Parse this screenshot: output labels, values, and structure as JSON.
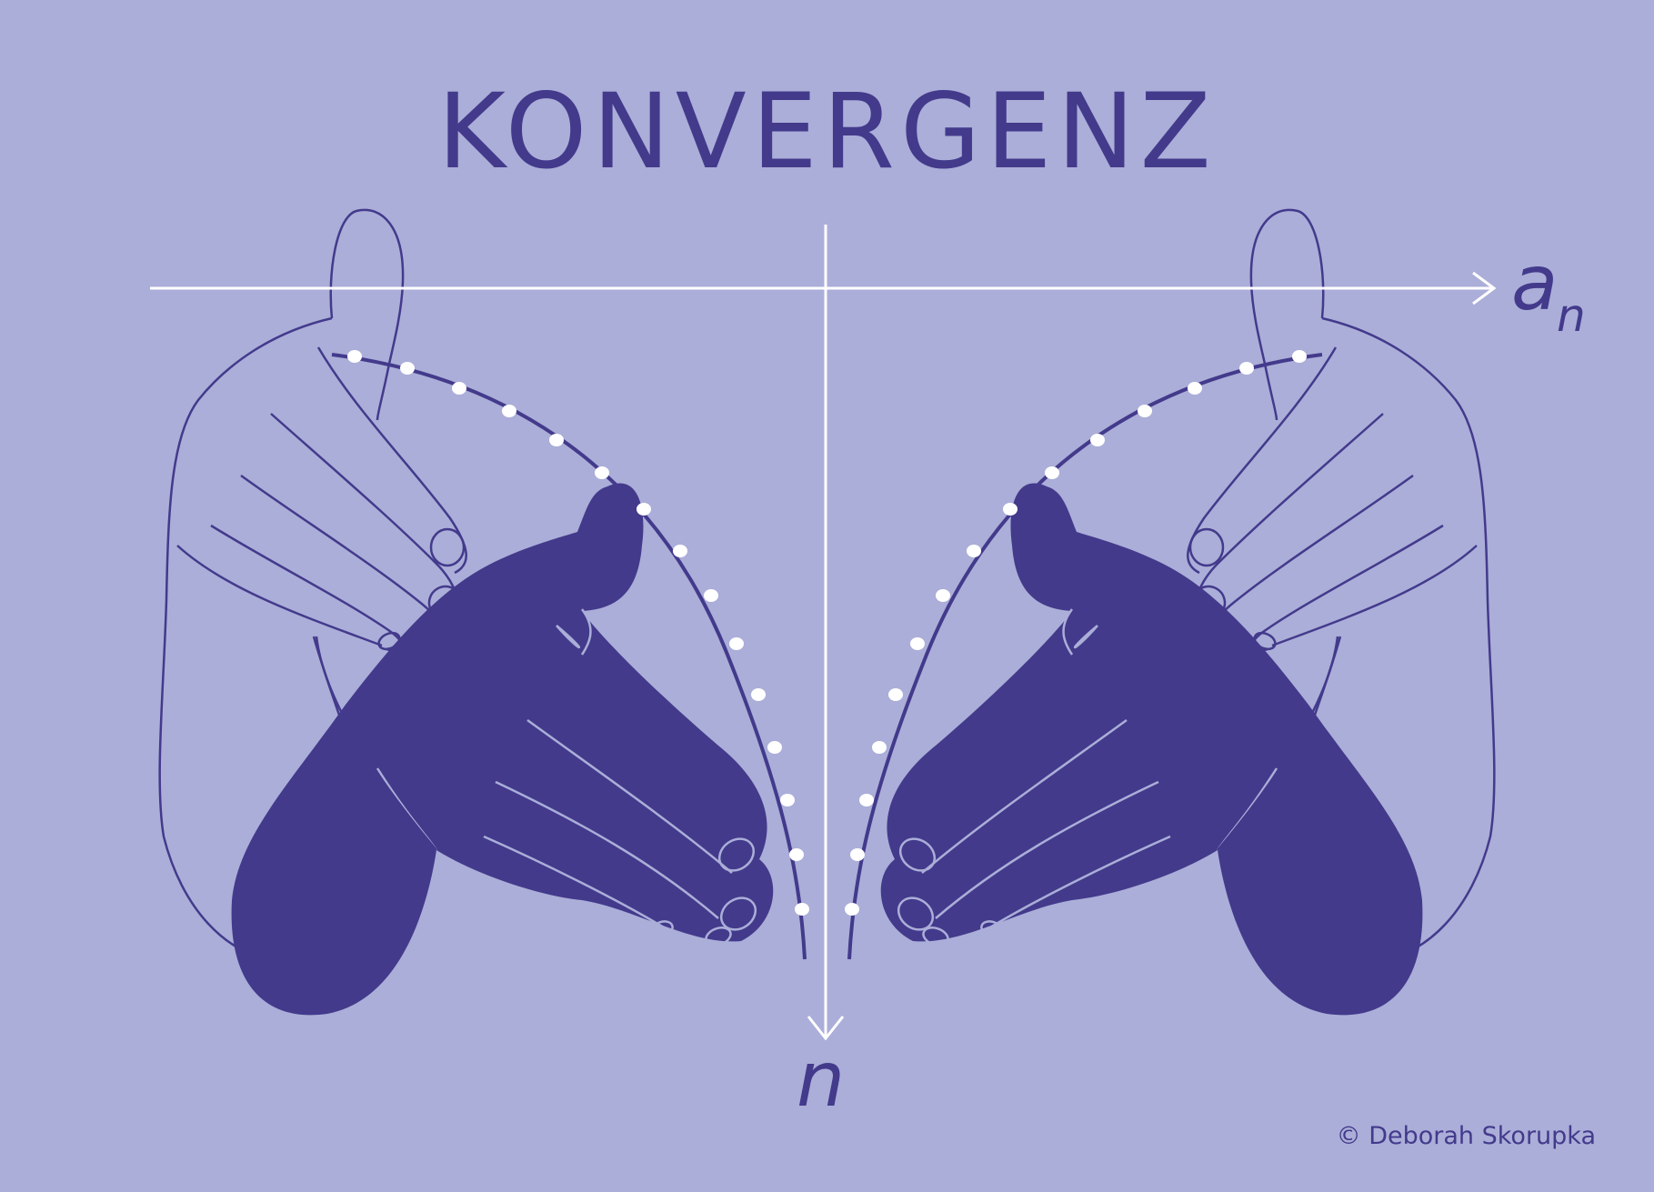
{
  "title": "KONVERGENZ",
  "axes": {
    "horizontal_label": "a",
    "horizontal_label_subscript": "n",
    "vertical_label": "n"
  },
  "credit": "© Deborah Skorupka",
  "colors": {
    "background": "#ABAED8",
    "hand_dark": "#433A8C",
    "outline": "#433A8C",
    "axis": "#FFFFFF",
    "dots": "#FFFFFF"
  },
  "icons": [
    "left-hand-outline-icon",
    "left-hand-filled-icon",
    "right-hand-outline-icon",
    "right-hand-filled-icon"
  ]
}
